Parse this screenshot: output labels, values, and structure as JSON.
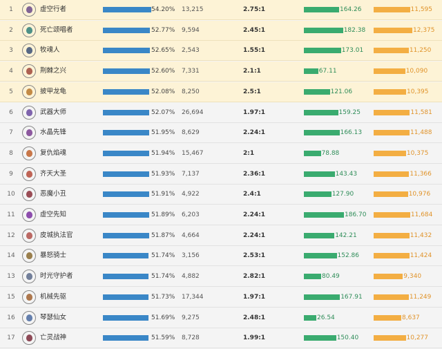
{
  "colors": {
    "win_bar": "#3a87c7",
    "score_bar": "#3aab6f",
    "gold_bar": "#f3ae43",
    "top_row_bg": "#fdf3d6",
    "row_bg": "#f4f4f4"
  },
  "rows": [
    {
      "rank": "1",
      "name": "虚空行者",
      "win_rate": "54.20%",
      "win_pct": 54.2,
      "games": "13,215",
      "kda": "2.75:1",
      "score": "164.26",
      "gold": "11,595",
      "icon": "champion-portrait-icon",
      "portrait_color": "#6b4a8a"
    },
    {
      "rank": "2",
      "name": "死亡颂唱者",
      "win_rate": "52.77%",
      "win_pct": 52.77,
      "games": "9,594",
      "kda": "2.45:1",
      "score": "182.38",
      "gold": "12,375",
      "icon": "champion-portrait-icon",
      "portrait_color": "#2f7f7a"
    },
    {
      "rank": "3",
      "name": "牧魂人",
      "win_rate": "52.65%",
      "win_pct": 52.65,
      "games": "2,543",
      "kda": "1.55:1",
      "score": "173.01",
      "gold": "11,250",
      "icon": "champion-portrait-icon",
      "portrait_color": "#3a4f77"
    },
    {
      "rank": "4",
      "name": "荆棘之兴",
      "win_rate": "52.60%",
      "win_pct": 52.6,
      "games": "7,331",
      "kda": "2.1:1",
      "score": "67.11",
      "gold": "10,090",
      "icon": "champion-portrait-icon",
      "portrait_color": "#a0473a"
    },
    {
      "rank": "5",
      "name": "披甲龙龟",
      "win_rate": "52.08%",
      "win_pct": 52.08,
      "games": "8,250",
      "kda": "2.5:1",
      "score": "121.06",
      "gold": "10,395",
      "icon": "champion-portrait-icon",
      "portrait_color": "#b8772c"
    },
    {
      "rank": "6",
      "name": "武器大师",
      "win_rate": "52.07%",
      "win_pct": 52.07,
      "games": "26,694",
      "kda": "1.97:1",
      "score": "159.25",
      "gold": "11,581",
      "icon": "champion-portrait-icon",
      "portrait_color": "#6a4aa0"
    },
    {
      "rank": "7",
      "name": "水晶先锋",
      "win_rate": "51.95%",
      "win_pct": 51.95,
      "games": "8,629",
      "kda": "2.24:1",
      "score": "166.13",
      "gold": "11,488",
      "icon": "champion-portrait-icon",
      "portrait_color": "#7a3d8f"
    },
    {
      "rank": "8",
      "name": "复仇焰魂",
      "win_rate": "51.94%",
      "win_pct": 51.94,
      "games": "15,467",
      "kda": "2:1",
      "score": "78.88",
      "gold": "10,375",
      "icon": "champion-portrait-icon",
      "portrait_color": "#c0602a"
    },
    {
      "rank": "9",
      "name": "齐天大圣",
      "win_rate": "51.93%",
      "win_pct": 51.93,
      "games": "7,137",
      "kda": "2.36:1",
      "score": "143.43",
      "gold": "11,366",
      "icon": "champion-portrait-icon",
      "portrait_color": "#b54a3a"
    },
    {
      "rank": "10",
      "name": "恶魔小丑",
      "win_rate": "51.91%",
      "win_pct": 51.91,
      "games": "4,922",
      "kda": "2.4:1",
      "score": "127.90",
      "gold": "10,976",
      "icon": "champion-portrait-icon",
      "portrait_color": "#8a2f3a"
    },
    {
      "rank": "11",
      "name": "虚空先知",
      "win_rate": "51.89%",
      "win_pct": 51.89,
      "games": "6,203",
      "kda": "2.24:1",
      "score": "186.70",
      "gold": "11,684",
      "icon": "champion-portrait-icon",
      "portrait_color": "#7a2fa0"
    },
    {
      "rank": "12",
      "name": "皮城执法官",
      "win_rate": "51.87%",
      "win_pct": 51.87,
      "games": "4,664",
      "kda": "2.24:1",
      "score": "142.21",
      "gold": "11,432",
      "icon": "champion-portrait-icon",
      "portrait_color": "#b0504a"
    },
    {
      "rank": "14",
      "name": "暴怒骑士",
      "win_rate": "51.74%",
      "win_pct": 51.74,
      "games": "3,156",
      "kda": "2.53:1",
      "score": "152.86",
      "gold": "11,424",
      "icon": "champion-portrait-icon",
      "portrait_color": "#8a6a2f"
    },
    {
      "rank": "13",
      "name": "时光守护者",
      "win_rate": "51.74%",
      "win_pct": 51.74,
      "games": "4,882",
      "kda": "2.82:1",
      "score": "80.49",
      "gold": "9,340",
      "icon": "champion-portrait-icon",
      "portrait_color": "#5a6a8a"
    },
    {
      "rank": "15",
      "name": "机械先驱",
      "win_rate": "51.73%",
      "win_pct": 51.73,
      "games": "17,344",
      "kda": "1.97:1",
      "score": "167.91",
      "gold": "11,249",
      "icon": "champion-portrait-icon",
      "portrait_color": "#a0602f"
    },
    {
      "rank": "16",
      "name": "琴瑟仙女",
      "win_rate": "51.69%",
      "win_pct": 51.69,
      "games": "9,275",
      "kda": "2.48:1",
      "score": "26.54",
      "gold": "8,637",
      "icon": "champion-portrait-icon",
      "portrait_color": "#4a6aa0"
    },
    {
      "rank": "17",
      "name": "亡灵战神",
      "win_rate": "51.59%",
      "win_pct": 51.59,
      "games": "8,728",
      "kda": "1.99:1",
      "score": "150.40",
      "gold": "10,277",
      "icon": "champion-portrait-icon",
      "portrait_color": "#7a2a3a"
    }
  ]
}
